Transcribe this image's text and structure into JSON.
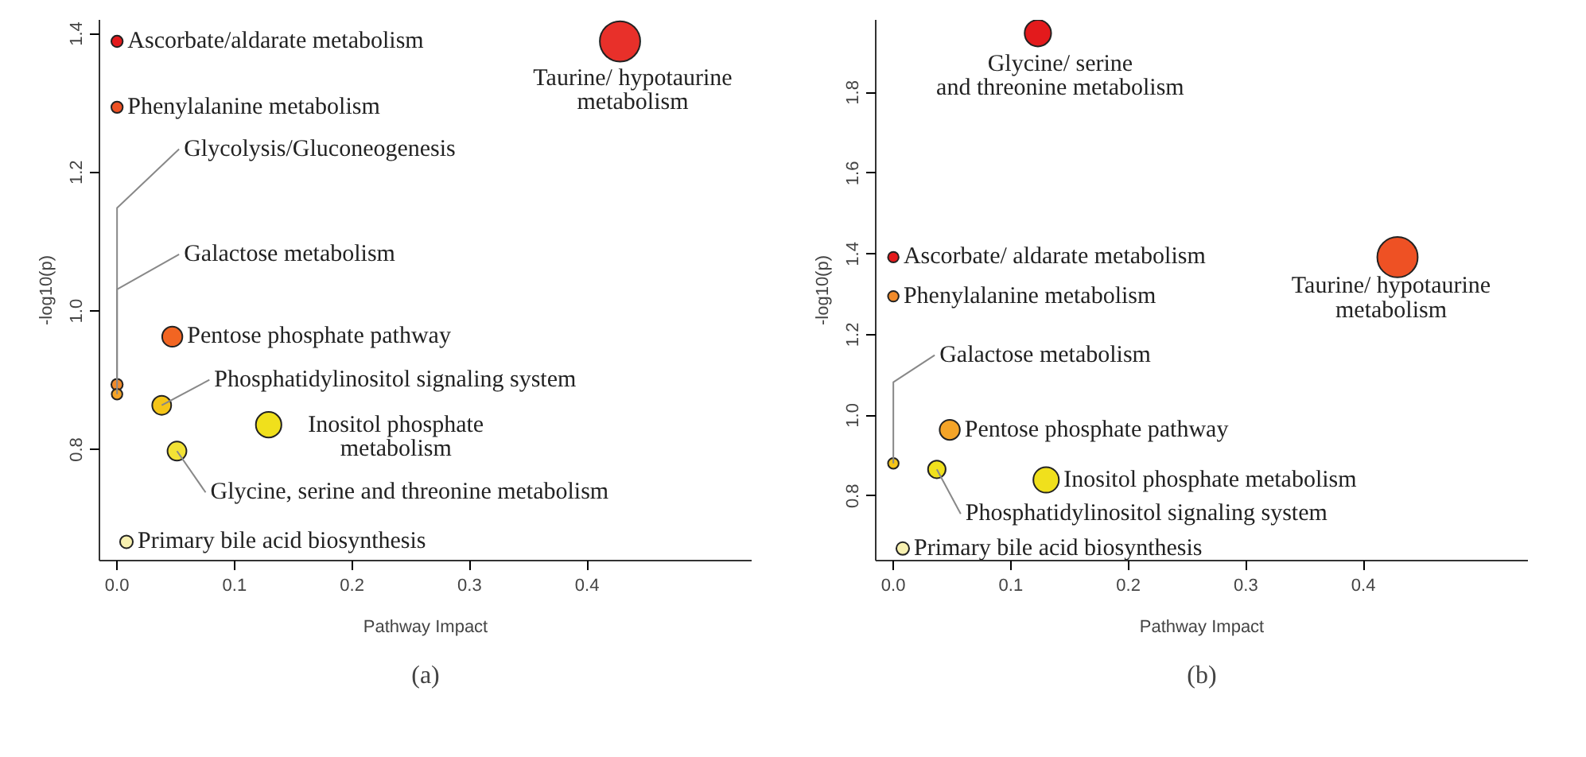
{
  "chart_data": [
    {
      "type": "bubble",
      "xlabel": "Pathway Impact",
      "ylabel": "-log10(p)",
      "marker": "circle",
      "xlim": [
        -0.015,
        0.54
      ],
      "ylim": [
        0.64,
        1.42
      ],
      "xticks": [
        {
          "value": 0,
          "label": "0.0"
        },
        0.1,
        0.2,
        0.3,
        0.4
      ],
      "yticks": [
        0.8,
        {
          "value": 1,
          "label": "1.0"
        },
        1.2,
        1.4
      ],
      "annotations": [
        "(a)"
      ],
      "series": [
        {
          "name": "Ascorbate/aldarate metabolism",
          "color": "#e31a1c",
          "x": [
            0
          ],
          "values": [
            1.389
          ],
          "sizes": [
            0.08
          ]
        },
        {
          "name": "Phenylalanine metabolism",
          "color": "#ee5124",
          "x": [
            0
          ],
          "values": [
            1.294
          ],
          "sizes": [
            0.08
          ]
        },
        {
          "name": "Taurine/ hypotaurine\nmetabolism",
          "color": "#e8302a",
          "x": [
            0.428
          ],
          "values": [
            1.389
          ],
          "sizes": [
            1
          ]
        },
        {
          "name": "Glycolysis/Gluconeogenesis",
          "color": "#f08a2a",
          "x": [
            0
          ],
          "values": [
            0.894
          ],
          "sizes": [
            0.08
          ]
        },
        {
          "name": "Galactose metabolism",
          "color": "#f4a428",
          "x": [
            0
          ],
          "values": [
            0.88
          ],
          "sizes": [
            0.07
          ]
        },
        {
          "name": "Pentose phosphate pathway",
          "color": "#f26522",
          "x": [
            0.047
          ],
          "values": [
            0.963
          ],
          "sizes": [
            0.25
          ]
        },
        {
          "name": "Phosphatidylinositol signaling system",
          "color": "#f5c518",
          "x": [
            0.038
          ],
          "values": [
            0.864
          ],
          "sizes": [
            0.22
          ]
        },
        {
          "name": "Inositol phosphate\nmetabolism",
          "color": "#f0e01c",
          "x": [
            0.129
          ],
          "values": [
            0.836
          ],
          "sizes": [
            0.4
          ]
        },
        {
          "name": "Glycine, serine and threonine metabolism",
          "color": "#f2e235",
          "x": [
            0.051
          ],
          "values": [
            0.798
          ],
          "sizes": [
            0.22
          ]
        },
        {
          "name": "Primary bile acid biosynthesis",
          "color": "#f7f0b0",
          "x": [
            0.008
          ],
          "values": [
            0.667
          ],
          "sizes": [
            0.1
          ]
        }
      ]
    },
    {
      "type": "bubble",
      "xlabel": "Pathway Impact",
      "ylabel": "-log10(p)",
      "marker": "circle",
      "xlim": [
        -0.015,
        0.54
      ],
      "ylim": [
        0.64,
        1.98
      ],
      "xticks": [
        {
          "value": 0,
          "label": "0.0"
        },
        0.1,
        0.2,
        0.3,
        0.4
      ],
      "yticks": [
        0.8,
        {
          "value": 1,
          "label": "1.0"
        },
        1.2,
        1.4,
        1.6,
        1.8
      ],
      "annotations": [
        "(b)"
      ],
      "series": [
        {
          "name": "Glycine/ serine\nand threonine metabolism",
          "color": "#e31a1c",
          "x": [
            0.123
          ],
          "values": [
            1.947
          ],
          "sizes": [
            0.43
          ]
        },
        {
          "name": "Ascorbate/ aldarate metabolism",
          "color": "#e31a1c",
          "x": [
            0
          ],
          "values": [
            1.392
          ],
          "sizes": [
            0.07
          ]
        },
        {
          "name": "Phenylalanine metabolism",
          "color": "#f08a2a",
          "x": [
            0
          ],
          "values": [
            1.295
          ],
          "sizes": [
            0.07
          ]
        },
        {
          "name": "Taurine/ hypotaurine\nmetabolism",
          "color": "#ee5124",
          "x": [
            0.429
          ],
          "values": [
            1.392
          ],
          "sizes": [
            1
          ]
        },
        {
          "name": "Galactose metabolism",
          "color": "#f5c518",
          "x": [
            0
          ],
          "values": [
            0.881
          ],
          "sizes": [
            0.07
          ]
        },
        {
          "name": "Pentose phosphate pathway",
          "color": "#f4a428",
          "x": [
            0.048
          ],
          "values": [
            0.964
          ],
          "sizes": [
            0.25
          ]
        },
        {
          "name": "Phosphatidylinositol signaling system",
          "color": "#f0e01c",
          "x": [
            0.037
          ],
          "values": [
            0.866
          ],
          "sizes": [
            0.19
          ]
        },
        {
          "name": "Inositol phosphate metabolism",
          "color": "#f0e01c",
          "x": [
            0.13
          ],
          "values": [
            0.84
          ],
          "sizes": [
            0.4
          ]
        },
        {
          "name": "Primary bile acid biosynthesis",
          "color": "#f7f0b0",
          "x": [
            0.008
          ],
          "values": [
            0.67
          ],
          "sizes": [
            0.1
          ]
        }
      ]
    }
  ]
}
